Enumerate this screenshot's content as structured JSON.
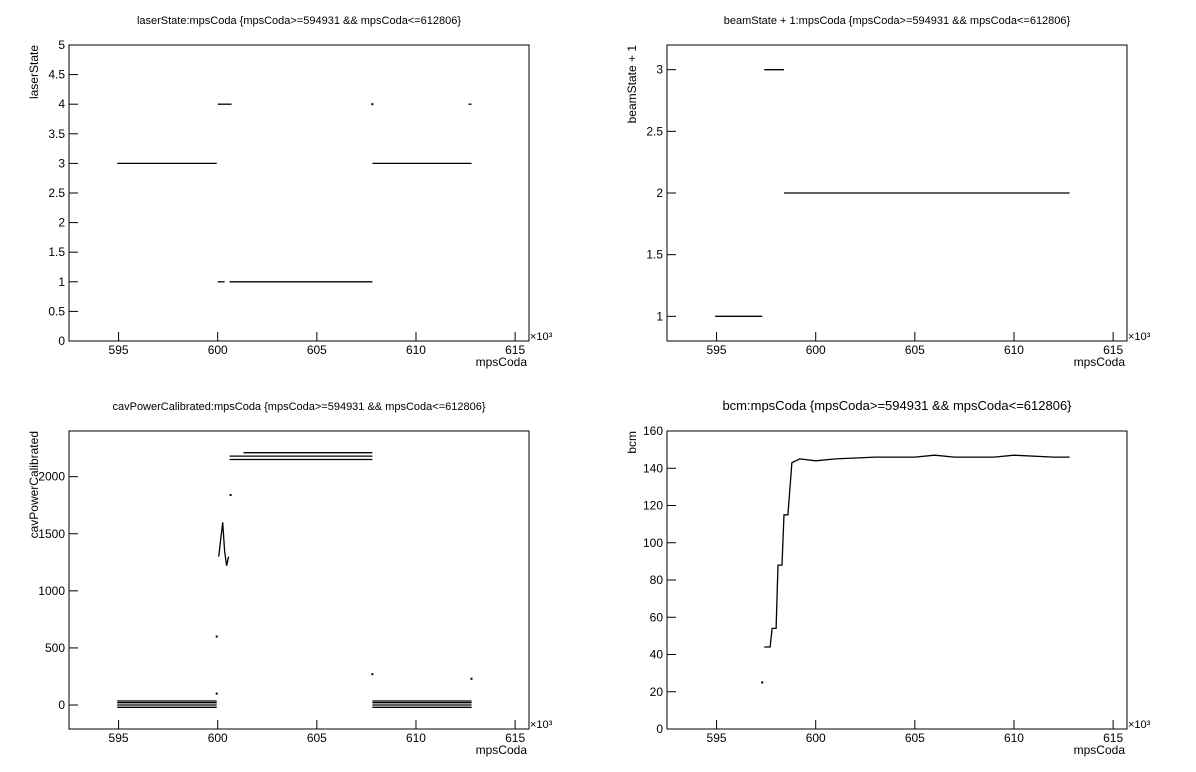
{
  "chart_data": [
    {
      "type": "line",
      "title": "laserState:mpsCoda {mpsCoda>=594931 && mpsCoda<=612806}",
      "x_label": "mpsCoda",
      "y_label": "laserState",
      "x_multiplier": "×10³",
      "color": "#000000",
      "xlim": [
        592500,
        615700
      ],
      "xticks": [
        {
          "value": 595000,
          "label": "595"
        },
        {
          "value": 600000,
          "label": "600"
        },
        {
          "value": 605000,
          "label": "605"
        },
        {
          "value": 610000,
          "label": "610"
        },
        {
          "value": 615000,
          "label": "615"
        }
      ],
      "ylim": [
        0,
        5
      ],
      "yticks": [
        0,
        0.5,
        1,
        1.5,
        2,
        2.5,
        3,
        3.5,
        4,
        4.5,
        5
      ],
      "x": [
        594931,
        599950,
        599950,
        600000,
        600700,
        600700,
        600000,
        600350,
        600350,
        600600,
        607800,
        607800,
        607800,
        612806,
        612806,
        607800,
        607800,
        612650,
        612806
      ],
      "values": [
        3,
        3,
        null,
        4,
        4,
        null,
        1,
        1,
        null,
        1,
        1,
        null,
        3,
        3,
        null,
        4,
        null,
        4,
        4
      ]
    },
    {
      "type": "line",
      "title": "beamState + 1:mpsCoda {mpsCoda>=594931 && mpsCoda<=612806}",
      "x_label": "mpsCoda",
      "y_label": "beamState + 1",
      "x_multiplier": "×10³",
      "color": "#000000",
      "xlim": [
        592500,
        615700
      ],
      "xticks": [
        {
          "value": 595000,
          "label": "595"
        },
        {
          "value": 600000,
          "label": "600"
        },
        {
          "value": 605000,
          "label": "605"
        },
        {
          "value": 610000,
          "label": "610"
        },
        {
          "value": 615000,
          "label": "615"
        }
      ],
      "ylim": [
        0.8,
        3.2
      ],
      "yticks": [
        1,
        1.5,
        2,
        2.5,
        3
      ],
      "x": [
        594931,
        597300,
        597300,
        597400,
        598400,
        598400,
        598400,
        612806
      ],
      "values": [
        1,
        1,
        null,
        3,
        3,
        null,
        2,
        2
      ]
    },
    {
      "type": "line",
      "title": "cavPowerCalibrated:mpsCoda {mpsCoda>=594931 && mpsCoda<=612806}",
      "x_label": "mpsCoda",
      "y_label": "cavPowerCalibrated",
      "x_multiplier": "×10³",
      "color": "#000000",
      "xlim": [
        592500,
        615700
      ],
      "xticks": [
        {
          "value": 595000,
          "label": "595"
        },
        {
          "value": 600000,
          "label": "600"
        },
        {
          "value": 605000,
          "label": "605"
        },
        {
          "value": 610000,
          "label": "610"
        },
        {
          "value": 615000,
          "label": "615"
        }
      ],
      "ylim": [
        -210,
        2400
      ],
      "yticks": [
        0,
        500,
        1000,
        1500,
        2000
      ],
      "x": [
        594931,
        599950,
        599950,
        594931,
        599950,
        599950,
        594931,
        599950,
        599950,
        594931,
        599950,
        599950,
        607800,
        612806,
        612806,
        607800,
        612806,
        612806,
        607800,
        612806,
        612806,
        607800,
        612806,
        612806,
        600600,
        607800,
        607800,
        600600,
        607800,
        607800,
        601300,
        607800,
        607800,
        600050,
        600150,
        600250,
        600350,
        600450,
        600550,
        600550,
        599950,
        599950,
        600650,
        600650,
        607800,
        607800,
        612800,
        612800,
        599950
      ],
      "values": [
        -20,
        -20,
        null,
        0,
        0,
        null,
        20,
        20,
        null,
        35,
        35,
        null,
        -20,
        -20,
        null,
        0,
        0,
        null,
        20,
        20,
        null,
        35,
        35,
        null,
        2150,
        2150,
        null,
        2180,
        2180,
        null,
        2210,
        2210,
        null,
        1300,
        1450,
        1600,
        1350,
        1220,
        1300,
        null,
        600,
        null,
        1840,
        null,
        270,
        null,
        230,
        null,
        100
      ]
    },
    {
      "type": "line",
      "title": "bcm:mpsCoda {mpsCoda>=594931 && mpsCoda<=612806}",
      "x_label": "mpsCoda",
      "y_label": "bcm",
      "x_multiplier": "×10³",
      "color": "#000000",
      "xlim": [
        592500,
        615700
      ],
      "xticks": [
        {
          "value": 595000,
          "label": "595"
        },
        {
          "value": 600000,
          "label": "600"
        },
        {
          "value": 605000,
          "label": "605"
        },
        {
          "value": 610000,
          "label": "610"
        },
        {
          "value": 615000,
          "label": "615"
        }
      ],
      "ylim": [
        0,
        160
      ],
      "yticks": [
        0,
        20,
        40,
        60,
        80,
        100,
        120,
        140,
        160
      ],
      "x": [
        597300,
        597300,
        597400,
        597700,
        597800,
        598000,
        598100,
        598300,
        598400,
        598600,
        598800,
        599200,
        600000,
        601000,
        603000,
        605000,
        606000,
        607000,
        609000,
        610000,
        612000,
        612806
      ],
      "values": [
        25,
        null,
        44,
        44,
        54,
        54,
        88,
        88,
        115,
        115,
        143,
        145,
        144,
        145,
        146,
        146,
        147,
        146,
        146,
        147,
        146,
        146
      ]
    }
  ]
}
